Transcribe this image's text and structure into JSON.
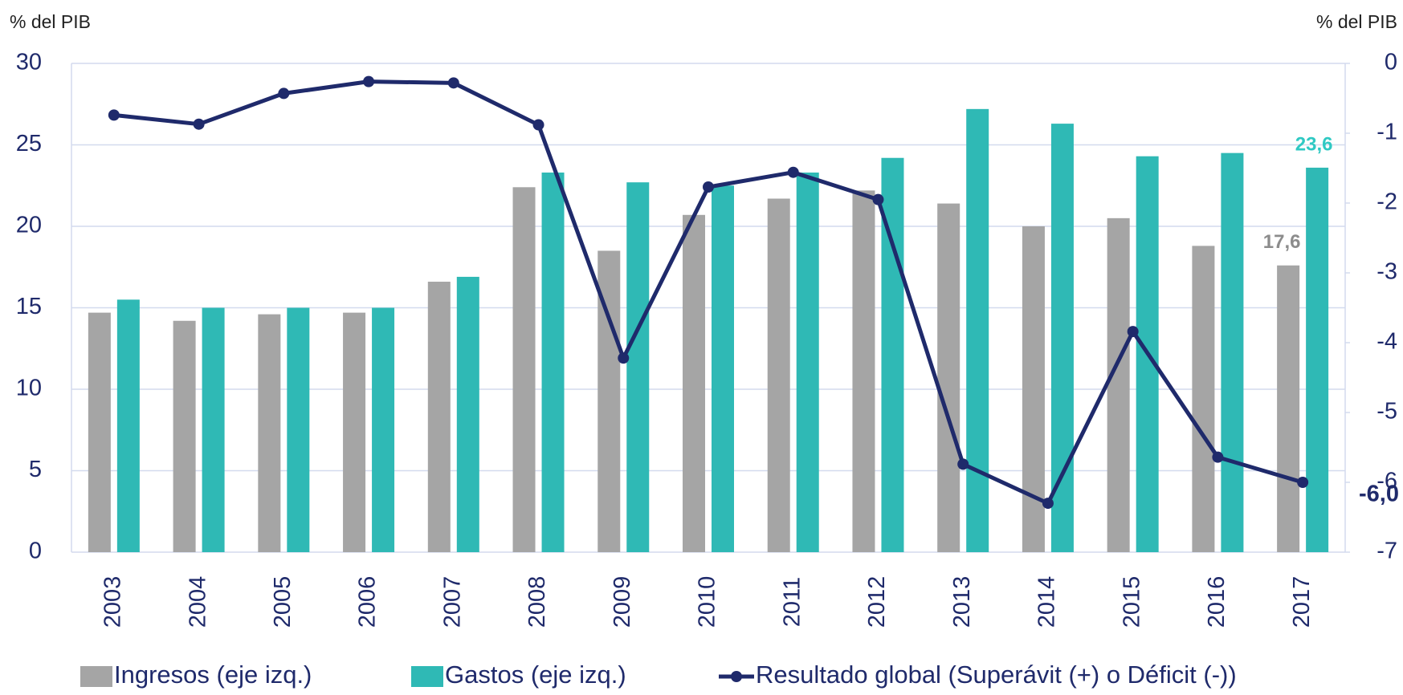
{
  "chart_data": {
    "type": "bar-line",
    "y_label": "% del PIB",
    "y2_label": "% del PIB",
    "categories": [
      "2003",
      "2004",
      "2005",
      "2006",
      "2007",
      "2008",
      "2009",
      "2010",
      "2011",
      "2012",
      "2013",
      "2014",
      "2015",
      "2016",
      "2017"
    ],
    "series": [
      {
        "name": "Ingresos (eje izq.)",
        "type": "bar",
        "color": "#a5a5a5",
        "label_color": "#8c8c8c",
        "values": [
          14.7,
          14.2,
          14.6,
          14.7,
          16.6,
          22.4,
          18.5,
          20.7,
          21.7,
          22.2,
          21.4,
          20.0,
          20.5,
          18.8,
          17.6
        ],
        "value_labels": [
          null,
          null,
          null,
          null,
          null,
          null,
          null,
          null,
          null,
          null,
          null,
          null,
          null,
          null,
          "17,6"
        ]
      },
      {
        "name": "Gastos (eje izq.)",
        "type": "bar",
        "color": "#2fb9b5",
        "label_color": "#2fc9c3",
        "values": [
          15.5,
          15.0,
          15.0,
          15.0,
          16.9,
          23.3,
          22.7,
          22.5,
          23.3,
          24.2,
          27.2,
          26.3,
          24.3,
          24.5,
          23.6
        ],
        "value_labels": [
          null,
          null,
          null,
          null,
          null,
          null,
          null,
          null,
          null,
          null,
          null,
          null,
          null,
          null,
          "23,6"
        ]
      },
      {
        "name": "Resultado global (Superávit (+) o Déficit (-))",
        "type": "line",
        "axis": "y2",
        "color": "#1f2a6b",
        "label_color": "#1f2a6b",
        "values": [
          -0.74,
          -0.87,
          -0.43,
          -0.26,
          -0.28,
          -0.88,
          -4.22,
          -1.77,
          -1.56,
          -1.95,
          -5.74,
          -6.3,
          -3.84,
          -5.64,
          -6.0
        ],
        "value_labels": [
          null,
          null,
          null,
          null,
          null,
          null,
          null,
          null,
          null,
          null,
          null,
          null,
          null,
          null,
          "-6,0"
        ]
      }
    ],
    "ylim": [
      0,
      30
    ],
    "yticks": [
      0,
      5,
      10,
      15,
      20,
      25,
      30
    ],
    "y2lim": [
      -7,
      0
    ],
    "y2ticks": [
      -7,
      -6,
      -5,
      -4,
      -3,
      -2,
      -1,
      0
    ],
    "grid": true,
    "legend": "bottom"
  }
}
